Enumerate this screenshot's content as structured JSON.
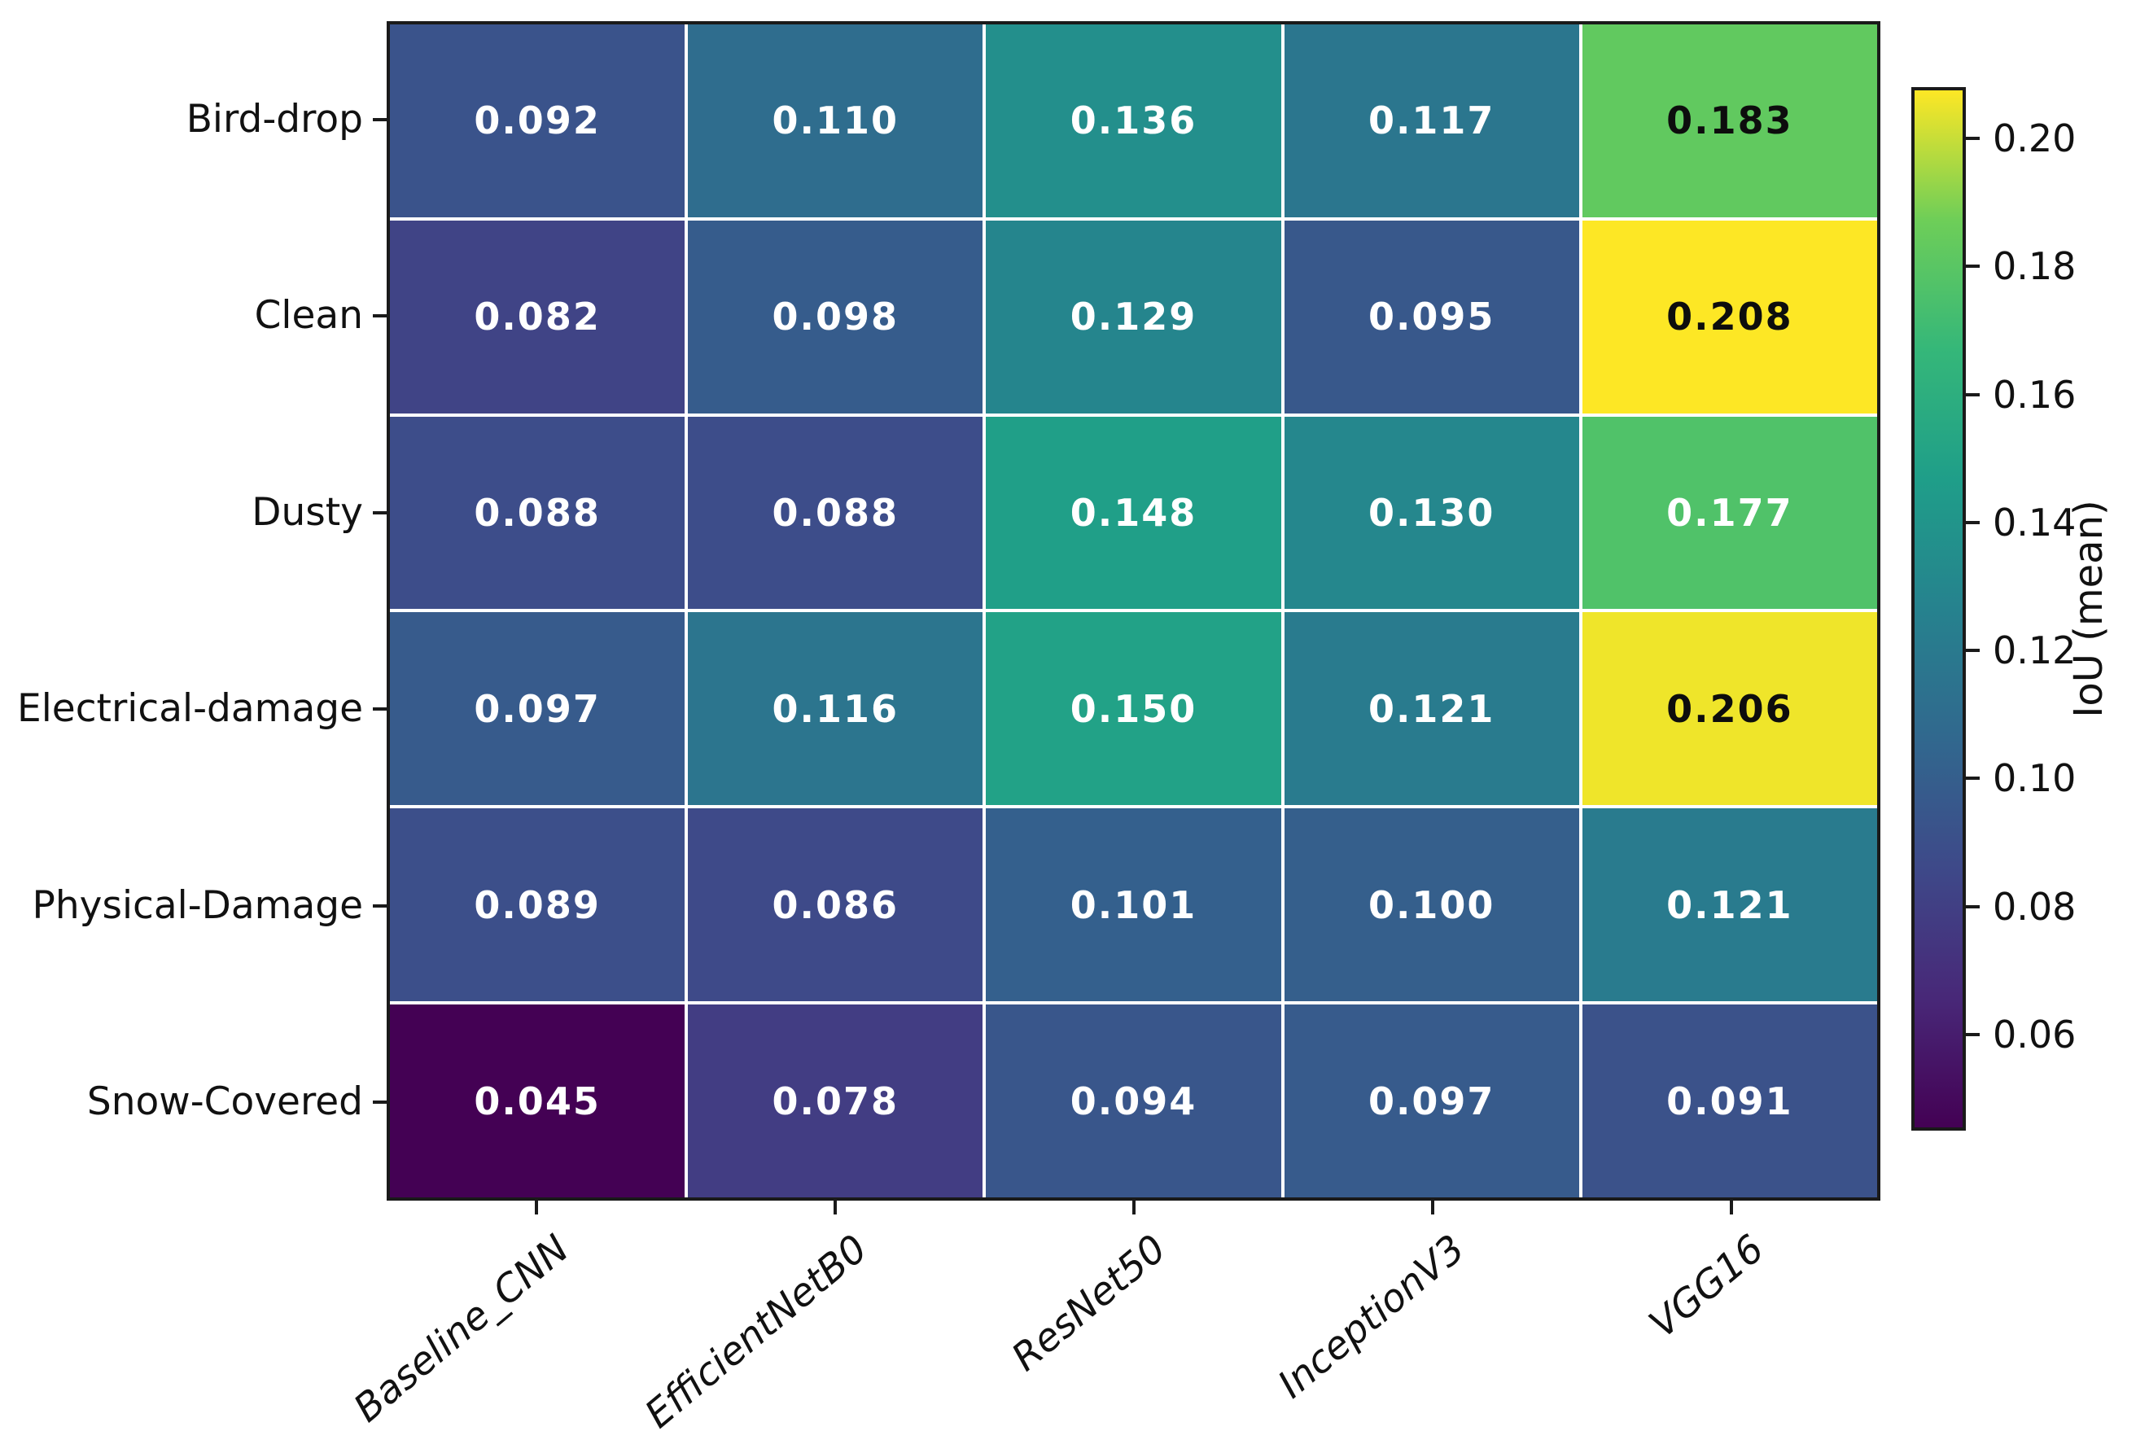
{
  "figure": {
    "background": "#ffffff",
    "axes_border_color": "#1a1a1a",
    "gridline_color": "#ffffff",
    "annotation_light_color": "#ffffff",
    "annotation_dark_color": "#0d0d0d"
  },
  "chart_data": {
    "type": "heatmap",
    "title": "",
    "xlabel": "",
    "ylabel": "",
    "rows": [
      "Bird-drop",
      "Clean",
      "Dusty",
      "Electrical-damage",
      "Physical-Damage",
      "Snow-Covered"
    ],
    "columns": [
      "Baseline_CNN",
      "EfficientNetB0",
      "ResNet50",
      "InceptionV3",
      "VGG16"
    ],
    "values": [
      [
        0.092,
        0.11,
        0.136,
        0.117,
        0.183
      ],
      [
        0.082,
        0.098,
        0.129,
        0.095,
        0.208
      ],
      [
        0.088,
        0.088,
        0.148,
        0.13,
        0.177
      ],
      [
        0.097,
        0.116,
        0.15,
        0.121,
        0.206
      ],
      [
        0.089,
        0.086,
        0.101,
        0.1,
        0.121
      ],
      [
        0.045,
        0.078,
        0.094,
        0.097,
        0.091
      ]
    ],
    "cell_value_decimals": 3,
    "colormap": "viridis",
    "vmin": 0.045,
    "vmax": 0.208,
    "grid_on": true,
    "legend_position": "right-colorbar",
    "colorbar": {
      "label": "IoU (mean)",
      "ticks": [
        0.2,
        0.18,
        0.16,
        0.14,
        0.12,
        0.1,
        0.08,
        0.06
      ],
      "tick_decimals": 2
    }
  }
}
